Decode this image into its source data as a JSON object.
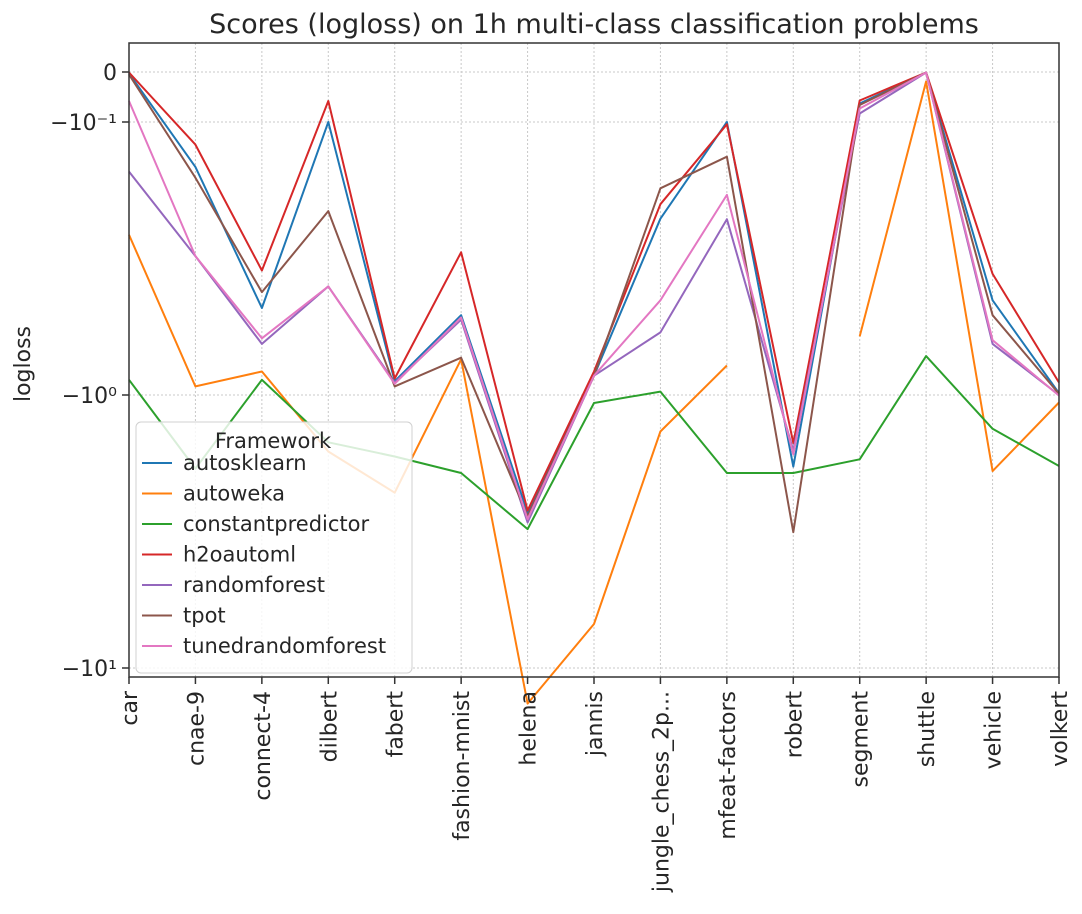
{
  "chart_data": {
    "type": "line",
    "title": "Scores (logloss) on 1h multi-class classification problems",
    "ylabel": "logloss",
    "xlabel": "",
    "yscale": "symlog",
    "ylim": [
      -21,
      0.02
    ],
    "grid": true,
    "categories": [
      "car",
      "cnae-9",
      "connect-4",
      "dilbert",
      "fabert",
      "fashion-mnist",
      "helena",
      "jannis",
      "jungle_chess_2p...",
      "mfeat-factors",
      "robert",
      "segment",
      "shuttle",
      "vehicle",
      "volkert"
    ],
    "y_ticks": [
      {
        "value": 0,
        "label": "0"
      },
      {
        "value": -0.1,
        "label": "−10⁻¹"
      },
      {
        "value": -1,
        "label": "−10⁰"
      },
      {
        "value": -10,
        "label": "−10¹"
      }
    ],
    "legend": {
      "title": "Framework",
      "position": "lower-left"
    },
    "series": [
      {
        "name": "autosklearn",
        "color": "#1f77b4",
        "values": [
          -0.003,
          -0.146,
          -0.48,
          -0.1,
          -0.89,
          -0.51,
          -2.7,
          -0.85,
          -0.226,
          -0.1,
          -1.83,
          -0.063,
          -0.001,
          -0.45,
          -0.985
        ]
      },
      {
        "name": "autoweka",
        "color": "#ff7f0e",
        "values": [
          -0.259,
          -0.93,
          -0.82,
          -1.61,
          -2.28,
          -0.74,
          -13.5,
          -6.9,
          -1.36,
          -0.78,
          null,
          -0.61,
          -0.019,
          -1.9,
          -1.065
        ]
      },
      {
        "name": "constantpredictor",
        "color": "#2ca02c",
        "values": [
          -0.88,
          -1.86,
          -0.88,
          -1.49,
          -1.68,
          -1.93,
          -3.1,
          -1.07,
          -0.972,
          -1.93,
          -1.93,
          -1.72,
          -0.72,
          -1.33,
          -1.82
        ]
      },
      {
        "name": "h2oautoml",
        "color": "#d62728",
        "values": [
          -0.001,
          -0.121,
          -0.35,
          -0.058,
          -0.87,
          -0.3,
          -2.65,
          -0.82,
          -0.2,
          -0.102,
          -1.5,
          -0.057,
          -0.001,
          -0.36,
          -0.9
        ]
      },
      {
        "name": "randomforest",
        "color": "#9467bd",
        "values": [
          -0.152,
          -0.31,
          -0.65,
          -0.4,
          -0.9,
          -0.53,
          -2.93,
          -0.85,
          -0.59,
          -0.227,
          -1.6,
          -0.083,
          -0.001,
          -0.65,
          -1.0
        ]
      },
      {
        "name": "tpot",
        "color": "#8c564b",
        "values": [
          -0.005,
          -0.16,
          -0.42,
          -0.212,
          -0.93,
          -0.73,
          -2.78,
          -0.85,
          -0.175,
          -0.134,
          -3.18,
          -0.066,
          -0.001,
          -0.51,
          -0.99
        ]
      },
      {
        "name": "tunedrandomforest",
        "color": "#e377c2",
        "values": [
          -0.058,
          -0.31,
          -0.62,
          -0.4,
          -0.91,
          -0.52,
          -2.85,
          -0.85,
          -0.45,
          -0.185,
          -1.65,
          -0.073,
          -0.001,
          -0.63,
          -1.005
        ]
      }
    ]
  }
}
